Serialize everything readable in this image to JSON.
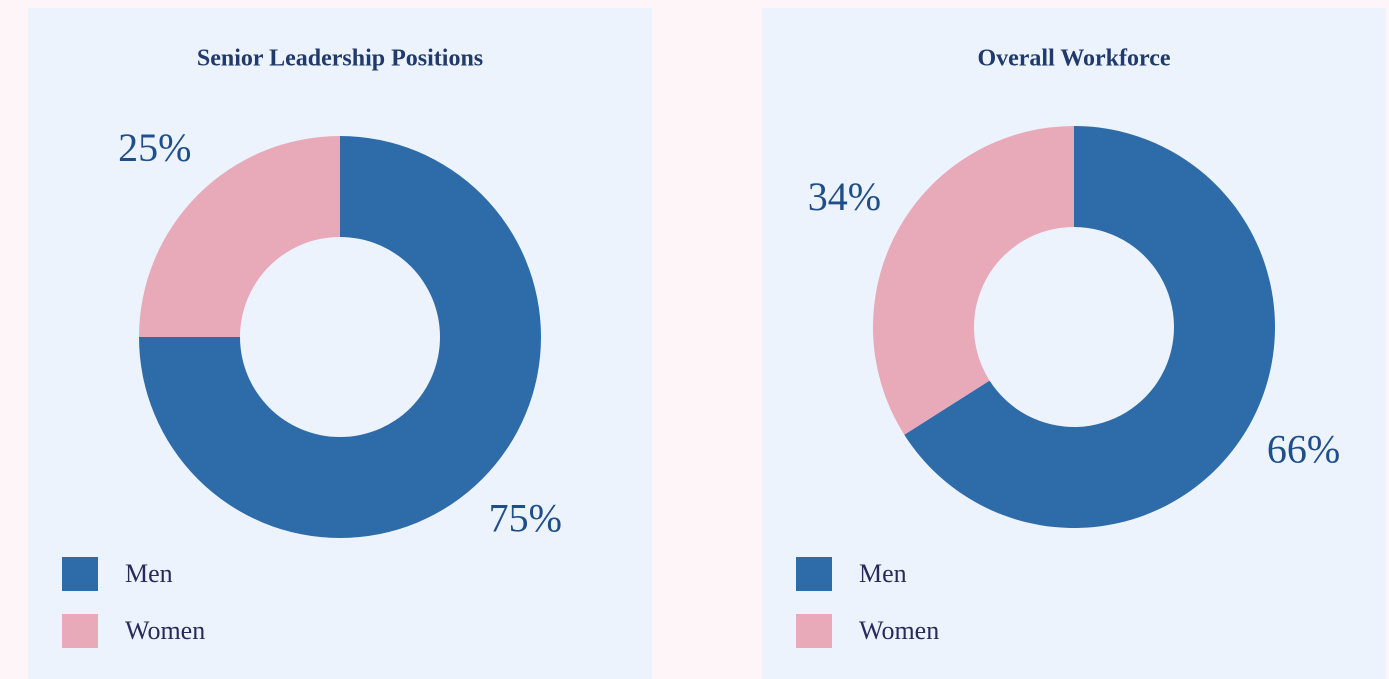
{
  "chart_data": [
    {
      "type": "donut",
      "title": "Senior Leadership Positions",
      "categories": [
        "Men",
        "Women"
      ],
      "values": [
        75,
        25
      ],
      "value_labels": [
        "75%",
        "25%"
      ],
      "colors": [
        "#2d6ca9",
        "#e8aab9"
      ]
    },
    {
      "type": "donut",
      "title": "Overall Workforce",
      "categories": [
        "Men",
        "Women"
      ],
      "values": [
        66,
        34
      ],
      "value_labels": [
        "66%",
        "34%"
      ],
      "colors": [
        "#2d6ca9",
        "#e8aab9"
      ]
    }
  ]
}
